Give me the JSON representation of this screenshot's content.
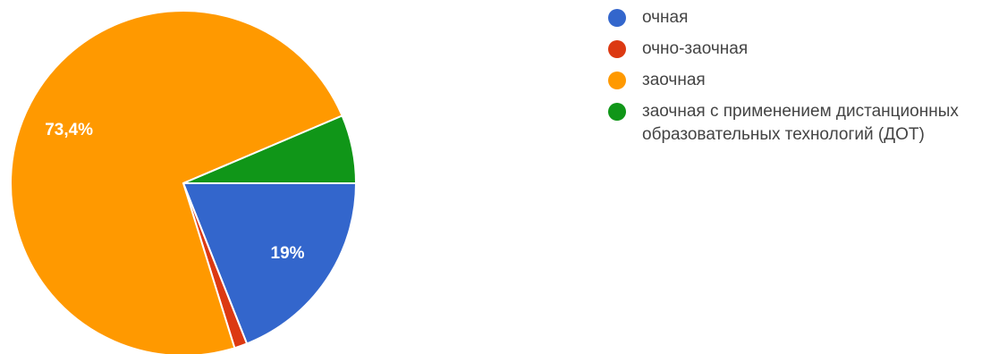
{
  "chart_data": {
    "type": "pie",
    "slices": [
      {
        "label": "очная",
        "value": 19,
        "value_label": "19%",
        "color": "#3366cc"
      },
      {
        "label": "очно-заочная",
        "value": 1.2,
        "value_label": "",
        "color": "#dc3912"
      },
      {
        "label": "заочная",
        "value": 73.4,
        "value_label": "73,4%",
        "color": "#ff9900"
      },
      {
        "label": "заочная с применением дистанционных образовательных технологий (ДОТ)",
        "value": 6.4,
        "value_label": "",
        "color": "#109618"
      }
    ],
    "legend_position": "right",
    "start_angle_deg": 90,
    "direction": "clockwise"
  }
}
